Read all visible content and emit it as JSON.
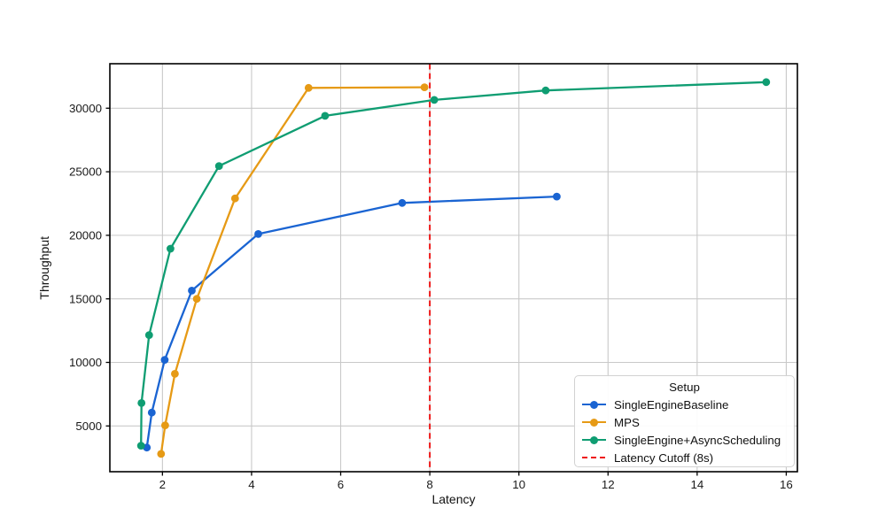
{
  "chart_data": {
    "type": "line",
    "title": "",
    "xlabel": "Latency",
    "ylabel": "Throughput",
    "xlim": [
      0.82,
      16.25
    ],
    "ylim": [
      1400,
      33500
    ],
    "xticks": [
      2,
      4,
      6,
      8,
      10,
      12,
      14,
      16
    ],
    "yticks": [
      5000,
      10000,
      15000,
      20000,
      25000,
      30000
    ],
    "grid": true,
    "legend_title": "Setup",
    "legend_position": "lower right",
    "series": [
      {
        "name": "SingleEngineBaseline",
        "color": "#1a64d2",
        "x": [
          1.65,
          1.76,
          2.05,
          2.66,
          4.15,
          7.38,
          10.85
        ],
        "y": [
          3300,
          6050,
          10200,
          15650,
          20100,
          22550,
          23050
        ]
      },
      {
        "name": "MPS",
        "color": "#e69a15",
        "x": [
          1.97,
          2.06,
          2.28,
          2.77,
          3.63,
          5.28,
          7.88
        ],
        "y": [
          2800,
          5050,
          9100,
          15000,
          22900,
          31600,
          31650
        ]
      },
      {
        "name": "SingleEngine+AsyncScheduling",
        "color": "#0f9d72",
        "x": [
          1.52,
          1.53,
          1.7,
          2.18,
          3.27,
          5.65,
          8.1,
          10.6,
          15.55
        ],
        "y": [
          3450,
          6800,
          12150,
          18950,
          25450,
          29400,
          30650,
          31400,
          32050
        ]
      }
    ],
    "cutoff_line": {
      "label": "Latency Cutoff (8s)",
      "x": 8,
      "color": "#ee1111",
      "style": "dashed"
    }
  },
  "colors": {
    "grid": "#c9c9c9",
    "spine": "#000000",
    "tick_label": "#1a1a1a",
    "background": "#ffffff",
    "legend_border": "#d2d2d2"
  }
}
